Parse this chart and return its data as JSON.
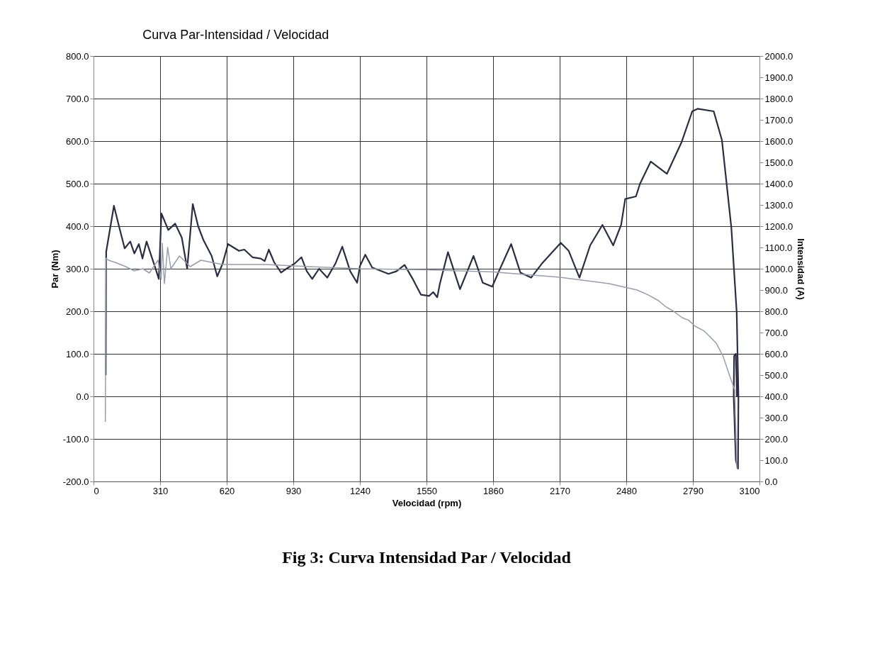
{
  "chart_data": {
    "type": "line",
    "title": "Curva Par-Intensidad / Velocidad",
    "xlabel": "Velocidad (rpm)",
    "ylabel": "Par (Nm)",
    "y2label": "Intensidad (A)",
    "annotations": [
      "Fig 3: Curva  Intensidad Par / Velocidad"
    ],
    "xlim": [
      0,
      3100
    ],
    "xticks": [
      0,
      310,
      620,
      930,
      1240,
      1550,
      1860,
      2170,
      2480,
      2790,
      3100
    ],
    "ylim": [
      -200,
      800
    ],
    "yticks": [
      {
        "value": -200,
        "label": "-200.0"
      },
      {
        "value": -100,
        "label": "-100.0"
      },
      {
        "value": 0,
        "label": "0.0"
      },
      {
        "value": 100,
        "label": "100.0"
      },
      {
        "value": 200,
        "label": "200.0"
      },
      {
        "value": 300,
        "label": "300.0"
      },
      {
        "value": 400,
        "label": "400.0"
      },
      {
        "value": 500,
        "label": "500.0"
      },
      {
        "value": 600,
        "label": "600.0"
      },
      {
        "value": 700,
        "label": "700.0"
      },
      {
        "value": 800,
        "label": "800.0"
      }
    ],
    "y2lim": [
      0,
      2000
    ],
    "y2ticks": [
      {
        "value": 0,
        "label": "0.0"
      },
      {
        "value": 100,
        "label": "100.0"
      },
      {
        "value": 200,
        "label": "200.0"
      },
      {
        "value": 300,
        "label": "300.0"
      },
      {
        "value": 400,
        "label": "400.0"
      },
      {
        "value": 500,
        "label": "500.0"
      },
      {
        "value": 600,
        "label": "600.0"
      },
      {
        "value": 700,
        "label": "700.0"
      },
      {
        "value": 800,
        "label": "800.0"
      },
      {
        "value": 900,
        "label": "900.0"
      },
      {
        "value": 1000,
        "label": "1000.0"
      },
      {
        "value": 1100,
        "label": "1100.0"
      },
      {
        "value": 1200,
        "label": "1200.0"
      },
      {
        "value": 1300,
        "label": "1300.0"
      },
      {
        "value": 1400,
        "label": "1400.0"
      },
      {
        "value": 1500,
        "label": "1500.0"
      },
      {
        "value": 1600,
        "label": "1600.0"
      },
      {
        "value": 1700,
        "label": "1700.0"
      },
      {
        "value": 1800,
        "label": "1800.0"
      },
      {
        "value": 1900,
        "label": "1900.0"
      },
      {
        "value": 2000,
        "label": "2000.0"
      }
    ],
    "grid": true,
    "line_style": "solid",
    "marker": "none",
    "series": [
      {
        "color": "#2b2d42",
        "x": [
          57,
          59,
          95,
          120,
          145,
          171,
          190,
          211,
          228,
          247,
          285,
          304,
          316,
          348,
          380,
          411,
          436,
          462,
          487,
          512,
          550,
          576,
          601,
          626,
          677,
          702,
          740,
          778,
          797,
          816,
          841,
          873,
          898,
          936,
          968,
          993,
          1018,
          1050,
          1088,
          1126,
          1158,
          1195,
          1227,
          1240,
          1265,
          1297,
          1373,
          1410,
          1448,
          1486,
          1524,
          1562,
          1581,
          1600,
          1612,
          1650,
          1706,
          1769,
          1812,
          1856,
          1887,
          1944,
          1987,
          2037,
          2087,
          2175,
          2212,
          2262,
          2312,
          2369,
          2419,
          2456,
          2475,
          2525,
          2544,
          2594,
          2669,
          2737,
          2787,
          2812,
          2887,
          2925,
          2969,
          2994,
          3002,
          3000,
          2990,
          2980,
          2982,
          2990,
          2995
        ],
        "values": [
          50,
          340,
          448,
          397,
          348,
          364,
          336,
          358,
          324,
          364,
          306,
          276,
          430,
          391,
          406,
          373,
          300,
          452,
          400,
          367,
          330,
          282,
          312,
          358,
          342,
          345,
          327,
          324,
          318,
          345,
          315,
          291,
          300,
          312,
          327,
          294,
          276,
          300,
          279,
          312,
          352,
          294,
          267,
          306,
          333,
          303,
          288,
          294,
          309,
          276,
          239,
          236,
          245,
          233,
          264,
          339,
          252,
          330,
          267,
          258,
          294,
          358,
          291,
          279,
          312,
          361,
          342,
          279,
          355,
          403,
          355,
          403,
          464,
          470,
          500,
          552,
          523,
          597,
          670,
          676,
          670,
          603,
          397,
          197,
          0,
          -170,
          -150,
          0,
          95,
          100,
          0
        ]
      },
      {
        "color": "#9a9cb0",
        "axis": "y2",
        "x": [
          55,
          58,
          70,
          100,
          150,
          190,
          230,
          260,
          300,
          315,
          320,
          330,
          345,
          360,
          400,
          450,
          500,
          600,
          800,
          1000,
          1240,
          1550,
          1860,
          2170,
          2400,
          2530,
          2580,
          2630,
          2660,
          2700,
          2740,
          2770,
          2800,
          2840,
          2870,
          2900,
          2930,
          2960,
          2985,
          2995
        ],
        "values": [
          280,
          1050,
          1040,
          1030,
          1010,
          990,
          1000,
          980,
          1040,
          950,
          1120,
          930,
          1100,
          1000,
          1060,
          1010,
          1040,
          1020,
          1020,
          1010,
          1000,
          995,
          985,
          960,
          930,
          900,
          878,
          850,
          824,
          800,
          770,
          758,
          730,
          709,
          680,
          648,
          590,
          500,
          430,
          60
        ]
      }
    ]
  }
}
